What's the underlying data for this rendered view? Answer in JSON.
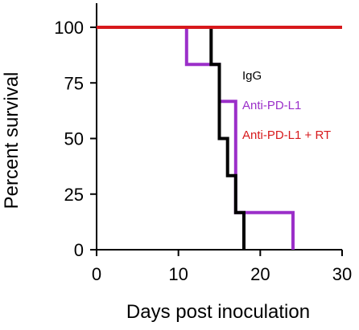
{
  "chart_data": {
    "type": "line",
    "step": true,
    "xlabel": "Days post inoculation",
    "ylabel": "Percent survival",
    "xlim": [
      0,
      30
    ],
    "ylim": [
      0,
      100
    ],
    "xticks": [
      0,
      10,
      20,
      30
    ],
    "yticks": [
      0,
      25,
      50,
      75,
      100
    ],
    "grid": false,
    "legend_placement": "inline, right of curves",
    "series": [
      {
        "name": "IgG",
        "color": "#000000",
        "x": [
          0,
          14,
          14,
          15,
          15,
          16,
          16,
          17,
          17,
          18,
          18
        ],
        "y": [
          100,
          100,
          83.3,
          83.3,
          50,
          50,
          33.3,
          33.3,
          16.7,
          16.7,
          0
        ]
      },
      {
        "name": "Anti-PD-L1",
        "color": "#9b2fc9",
        "x": [
          0,
          11,
          11,
          15,
          15,
          17,
          17,
          24,
          24
        ],
        "y": [
          100,
          100,
          83.3,
          83.3,
          66.7,
          66.7,
          16.7,
          16.7,
          0
        ]
      },
      {
        "name": "Anti-PD-L1 + RT",
        "color": "#d7191c",
        "x": [
          0,
          30
        ],
        "y": [
          100,
          100
        ]
      }
    ]
  }
}
